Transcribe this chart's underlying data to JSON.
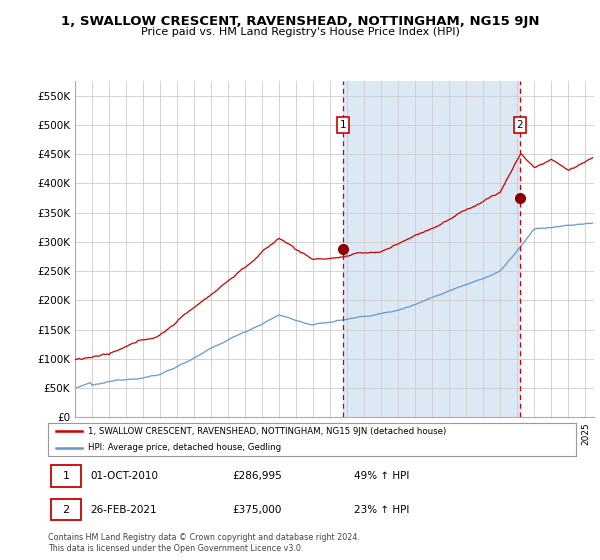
{
  "title": "1, SWALLOW CRESCENT, RAVENSHEAD, NOTTINGHAM, NG15 9JN",
  "subtitle": "Price paid vs. HM Land Registry's House Price Index (HPI)",
  "ylim": [
    0,
    575000
  ],
  "yticks": [
    0,
    50000,
    100000,
    150000,
    200000,
    250000,
    300000,
    350000,
    400000,
    450000,
    500000,
    550000
  ],
  "xlim_start": 1995.0,
  "xlim_end": 2025.5,
  "sale1_x": 2010.75,
  "sale1_y": 286995,
  "sale1_label": "01-OCT-2010",
  "sale1_price": "£286,995",
  "sale1_hpi": "49% ↑ HPI",
  "sale2_x": 2021.15,
  "sale2_y": 375000,
  "sale2_label": "26-FEB-2021",
  "sale2_price": "£375,000",
  "sale2_hpi": "23% ↑ HPI",
  "legend_line1": "1, SWALLOW CRESCENT, RAVENSHEAD, NOTTINGHAM, NG15 9JN (detached house)",
  "legend_line2": "HPI: Average price, detached house, Gedling",
  "footnote": "Contains HM Land Registry data © Crown copyright and database right 2024.\nThis data is licensed under the Open Government Licence v3.0.",
  "red_color": "#cc0000",
  "blue_color": "#6699cc",
  "shade_color": "#dde8f5",
  "plot_bg": "#ffffff",
  "marker_dot_color": "#8b0000"
}
